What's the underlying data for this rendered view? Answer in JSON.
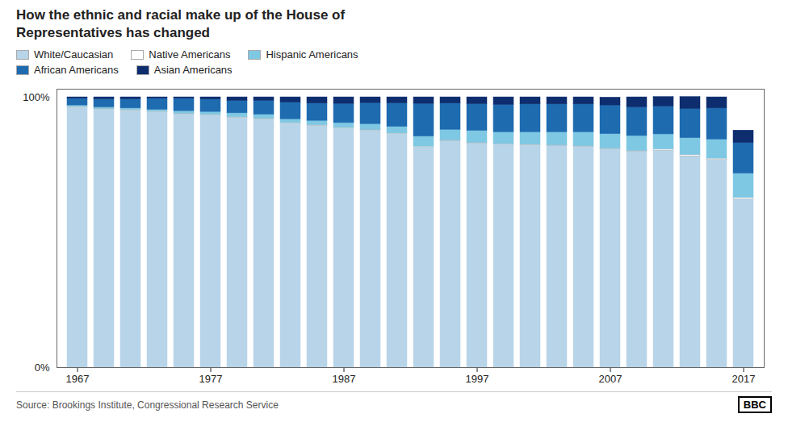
{
  "chart_data": {
    "type": "bar",
    "stacked": true,
    "title": "How the ethnic and racial make up of the House of\nRepresentatives has changed",
    "annotations": [
      "Source: Brookings Institute, Congressional Research Service",
      "BBC"
    ],
    "categories": [
      1967,
      1969,
      1971,
      1973,
      1975,
      1977,
      1979,
      1981,
      1983,
      1985,
      1987,
      1989,
      1991,
      1993,
      1995,
      1997,
      1999,
      2001,
      2003,
      2005,
      2007,
      2009,
      2011,
      2013,
      2015,
      2017
    ],
    "series": [
      {
        "name": "White/Caucasian",
        "color": "#b8d4e8",
        "values": [
          96.3,
          95.6,
          95.2,
          94.5,
          93.8,
          93.3,
          92.5,
          92.0,
          90.3,
          89.5,
          88.5,
          87.8,
          86.4,
          81.6,
          83.9,
          83.0,
          82.5,
          82.3,
          82.1,
          81.8,
          80.9,
          80.0,
          80.3,
          78.2,
          76.8,
          62.3
        ]
      },
      {
        "name": "Native Americans",
        "color": "#ffffff",
        "values": [
          0.2,
          0.2,
          0.2,
          0.2,
          0.2,
          0.2,
          0.2,
          0.2,
          0.2,
          0.2,
          0.2,
          0.2,
          0.2,
          0.2,
          0.2,
          0.2,
          0.2,
          0.2,
          0.2,
          0.2,
          0.2,
          0.2,
          0.5,
          0.5,
          0.5,
          0.5
        ]
      },
      {
        "name": "Hispanic Americans",
        "color": "#7ec8e3",
        "values": [
          0.5,
          0.5,
          0.5,
          0.7,
          0.9,
          1.1,
          1.4,
          1.4,
          1.4,
          1.6,
          1.8,
          2.1,
          2.5,
          3.7,
          3.9,
          4.4,
          4.4,
          4.6,
          4.8,
          5.1,
          5.3,
          5.5,
          5.5,
          6.2,
          7.1,
          9.0
        ]
      },
      {
        "name": "African Americans",
        "color": "#1e6bb0",
        "values": [
          2.5,
          3.0,
          3.4,
          4.1,
          4.6,
          4.6,
          4.6,
          5.1,
          6.2,
          6.4,
          7.1,
          7.8,
          8.7,
          12.1,
          9.7,
          9.9,
          10.1,
          10.3,
          10.3,
          10.3,
          10.6,
          10.6,
          10.3,
          10.8,
          11.5,
          11.3
        ]
      },
      {
        "name": "Asian Americans",
        "color": "#0d2d6e",
        "values": [
          0.5,
          0.7,
          0.7,
          0.5,
          0.5,
          0.8,
          1.3,
          1.3,
          1.9,
          2.3,
          2.4,
          2.1,
          2.2,
          2.4,
          2.3,
          2.5,
          2.8,
          2.6,
          2.6,
          2.6,
          2.9,
          3.7,
          3.5,
          4.4,
          4.1,
          4.6
        ]
      }
    ],
    "ylim": [
      0,
      103
    ],
    "yticks": [
      {
        "value": 0,
        "label": "0%"
      },
      {
        "value": 100,
        "label": "100%"
      }
    ],
    "xticks": [
      1967,
      1977,
      1987,
      1997,
      2007,
      2017
    ],
    "grid": false,
    "legend": "top"
  }
}
